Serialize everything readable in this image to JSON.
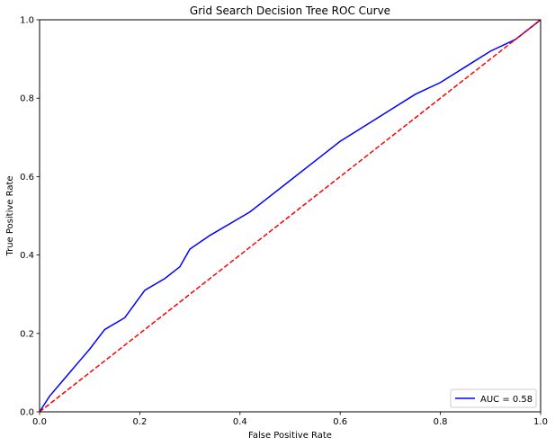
{
  "chart_data": {
    "type": "line",
    "title": "Grid Search Decision Tree ROC Curve",
    "xlabel": "False Positive Rate",
    "ylabel": "True Positive Rate",
    "xlim": [
      0,
      1
    ],
    "ylim": [
      0,
      1
    ],
    "xticks": [
      "0.0",
      "0.2",
      "0.4",
      "0.6",
      "0.8",
      "1.0"
    ],
    "yticks": [
      "0.0",
      "0.2",
      "0.4",
      "0.6",
      "0.8",
      "1.0"
    ],
    "grid": false,
    "legend": {
      "position": "lower-right",
      "entries": [
        "AUC = 0.58"
      ]
    },
    "series": [
      {
        "name": "AUC = 0.58",
        "color": "#0000ff",
        "style": "solid",
        "x": [
          0,
          0.01,
          0.02,
          0.04,
          0.06,
          0.08,
          0.1,
          0.13,
          0.17,
          0.21,
          0.25,
          0.28,
          0.3,
          0.34,
          0.38,
          0.42,
          0.45,
          0.5,
          0.55,
          0.6,
          0.65,
          0.7,
          0.75,
          0.8,
          0.85,
          0.9,
          0.95,
          1.0
        ],
        "y": [
          0,
          0.02,
          0.04,
          0.07,
          0.1,
          0.13,
          0.16,
          0.21,
          0.24,
          0.31,
          0.34,
          0.37,
          0.415,
          0.45,
          0.48,
          0.51,
          0.54,
          0.59,
          0.64,
          0.69,
          0.73,
          0.77,
          0.81,
          0.84,
          0.88,
          0.92,
          0.95,
          1.0
        ]
      },
      {
        "color": "#ff0000",
        "style": "dashed",
        "x": [
          0,
          1
        ],
        "y": [
          0,
          1
        ]
      }
    ]
  }
}
